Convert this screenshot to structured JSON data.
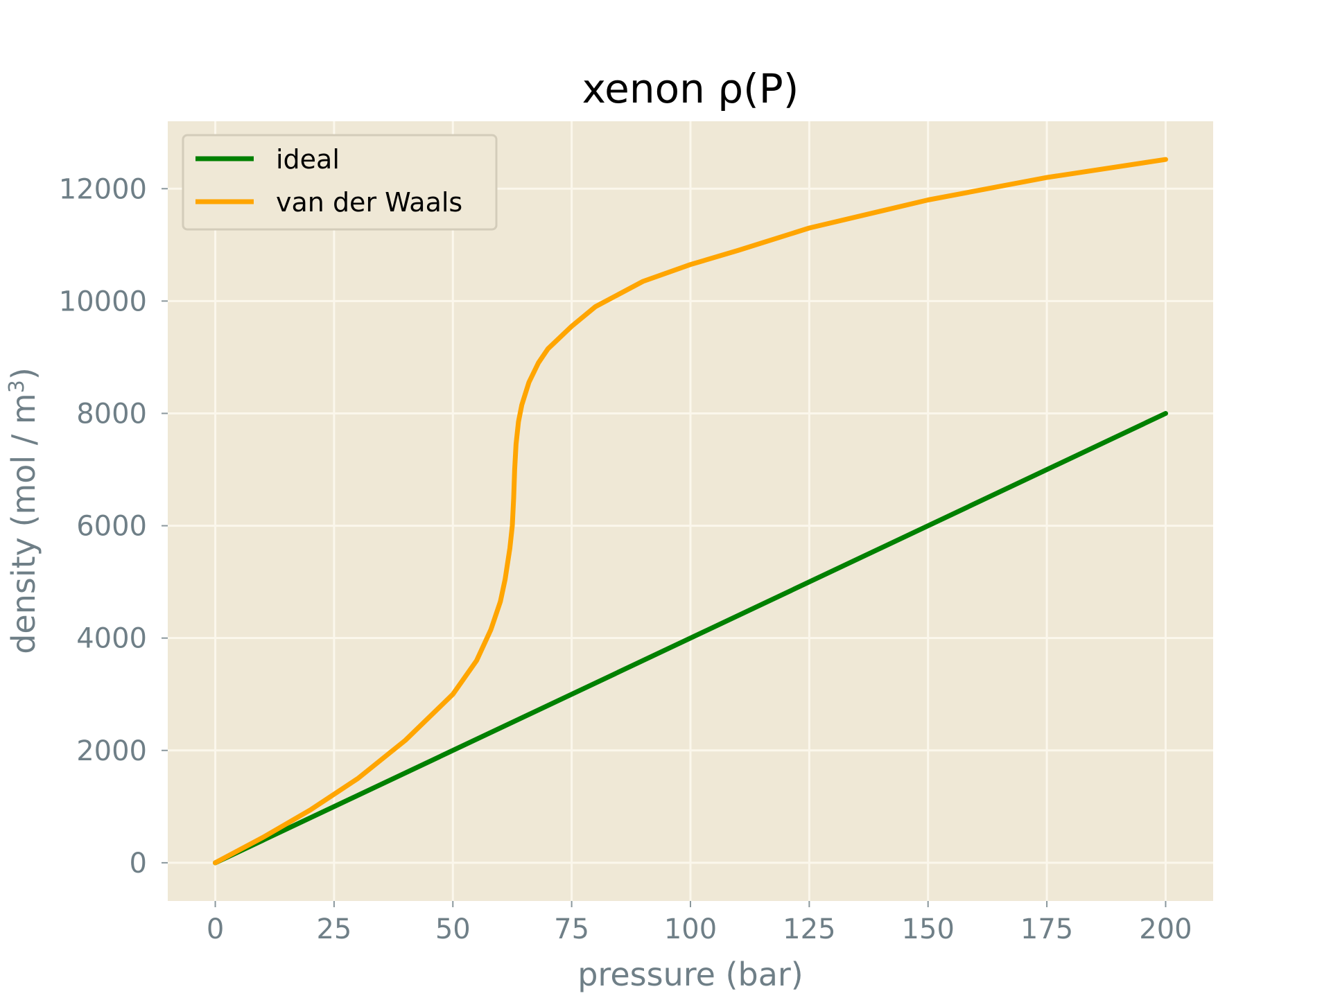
{
  "chart_data": {
    "type": "line",
    "title": "xenon ρ(P)",
    "xlabel": "pressure (bar)",
    "ylabel_main": "density (mol / m",
    "ylabel_sup": "3",
    "ylabel_close": ")",
    "xlim": [
      -10,
      210
    ],
    "ylim": [
      -680,
      13200
    ],
    "xticks": [
      0,
      25,
      50,
      75,
      100,
      125,
      150,
      175,
      200
    ],
    "xtick_labels": [
      "0",
      "25",
      "50",
      "75",
      "100",
      "125",
      "150",
      "175",
      "200"
    ],
    "yticks": [
      0,
      2000,
      4000,
      6000,
      8000,
      10000,
      12000
    ],
    "ytick_labels": [
      "0",
      "2000",
      "4000",
      "6000",
      "8000",
      "10000",
      "12000"
    ],
    "grid": true,
    "legend_position": "upper left",
    "background_color": "#efe8d6",
    "grid_color": "#fbf7ec",
    "series": [
      {
        "name": "ideal",
        "color": "#008000",
        "x": [
          0,
          200
        ],
        "y": [
          0,
          8000
        ]
      },
      {
        "name": "van der Waals",
        "color": "#ffa500",
        "x": [
          0,
          10,
          20,
          30,
          40,
          50,
          55,
          58,
          60,
          61,
          62,
          62.5,
          62.8,
          63.0,
          63.3,
          63.8,
          64.5,
          66,
          68,
          70,
          75,
          80,
          90,
          100,
          110,
          125,
          150,
          175,
          200
        ],
        "y": [
          0,
          450,
          940,
          1500,
          2180,
          3000,
          3600,
          4150,
          4650,
          5050,
          5600,
          6000,
          6500,
          7000,
          7450,
          7850,
          8150,
          8550,
          8900,
          9150,
          9550,
          9900,
          10350,
          10650,
          10900,
          11300,
          11800,
          12200,
          12520
        ]
      }
    ]
  }
}
